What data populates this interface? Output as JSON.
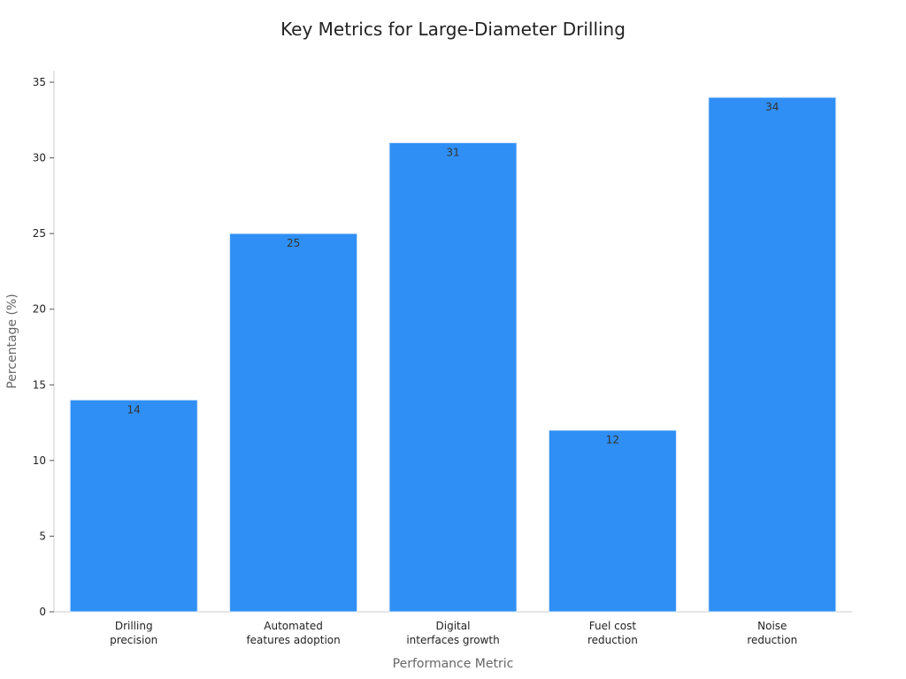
{
  "chart_data": {
    "type": "bar",
    "title": "Key Metrics for Large-Diameter Drilling",
    "xlabel": "Performance Metric",
    "ylabel": "Percentage (%)",
    "categories": [
      [
        "Drilling",
        "precision"
      ],
      [
        "Automated",
        "features adoption"
      ],
      [
        "Digital",
        "interfaces growth"
      ],
      [
        "Fuel cost",
        "reduction"
      ],
      [
        "Noise",
        "reduction"
      ]
    ],
    "values": [
      14,
      25,
      31,
      12,
      34
    ],
    "ylim": [
      0,
      35
    ],
    "yticks": [
      0,
      5,
      10,
      15,
      20,
      25,
      30,
      35
    ],
    "bar_color": "#2f8ff5",
    "bar_edge_color": "#d8e8fb",
    "axis_color": "#cccccc",
    "grid": false,
    "data_labels": true
  }
}
